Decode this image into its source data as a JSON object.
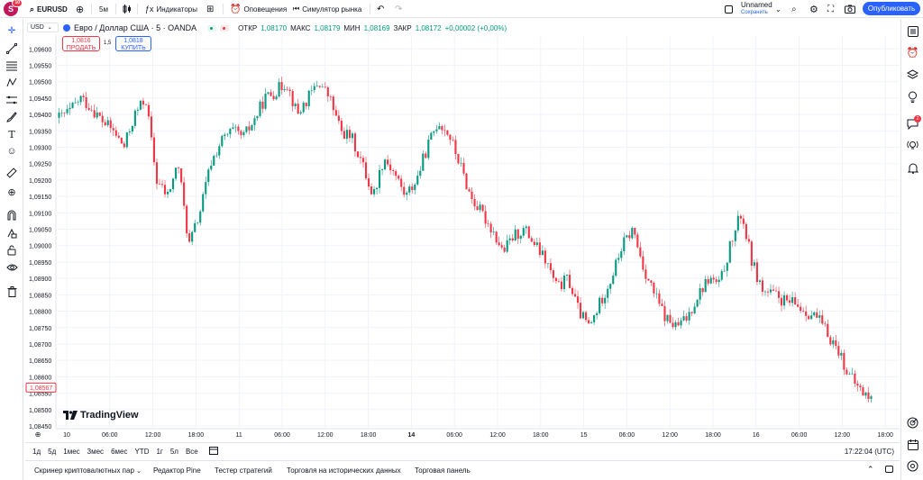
{
  "topbar": {
    "avatar_letter": "S",
    "avatar_badge": "10",
    "symbol": "EURUSD",
    "interval": "5м",
    "indicators": "Индикаторы",
    "alerts": "Оповещения",
    "replay": "Симулятор рынка",
    "layout_name": "Unnamed",
    "layout_save": "Сохранить",
    "publish": "Опубликовать"
  },
  "legend": {
    "symbol_box": "USD",
    "title": "Евро / Доллар США · 5 · OANDA",
    "open_label": "ОТКР",
    "open_value": "1,08170",
    "high_label": "МАКС",
    "high_value": "1,08179",
    "low_label": "МИН",
    "low_value": "1,08169",
    "close_label": "ЗАКР",
    "close_value": "1,08172",
    "change": "+0,00002 (+0,00%)"
  },
  "trade": {
    "sell_price": "1,0816",
    "sell_label": "ПРОДАТЬ",
    "buy_price": "1,0818",
    "buy_label": "КУПИТЬ",
    "spread": "1,5"
  },
  "price_axis": {
    "labels": [
      "1,09600",
      "1,09550",
      "1,09500",
      "1,09450",
      "1,09400",
      "1,09350",
      "1,09300",
      "1,09250",
      "1,09200",
      "1,09150",
      "1,09100",
      "1,09050",
      "1,09000",
      "1,08950",
      "1,08900",
      "1,08850",
      "1,08800",
      "1,08750",
      "1,08700",
      "1,08650",
      "1,08600",
      "1,08550",
      "1,08500",
      "1,08450"
    ],
    "current_price": "1,08567"
  },
  "time_axis": {
    "labels": [
      "10",
      "06:00",
      "12:00",
      "18:00",
      "11",
      "06:00",
      "12:00",
      "18:00",
      "14",
      "06:00",
      "12:00",
      "18:00",
      "15",
      "06:00",
      "12:00",
      "18:00",
      "16",
      "06:00",
      "12:00",
      "18:00"
    ]
  },
  "chart_data": {
    "type": "candlestick",
    "title": "Евро / Доллар США · 5 · OANDA",
    "xlabel": "",
    "ylabel": "",
    "ylim": [
      1.0845,
      1.0962
    ],
    "x_ticks": [
      "10",
      "06:00",
      "12:00",
      "18:00",
      "11",
      "06:00",
      "12:00",
      "18:00",
      "14",
      "06:00",
      "12:00",
      "18:00",
      "15",
      "06:00",
      "12:00",
      "18:00",
      "16",
      "06:00",
      "12:00",
      "18:00"
    ],
    "close_path": [
      1.0939,
      1.0941,
      1.0945,
      1.0942,
      1.0938,
      1.0935,
      1.093,
      1.094,
      1.0945,
      1.092,
      1.0915,
      1.0925,
      1.09,
      1.091,
      1.0925,
      1.0932,
      1.0935,
      1.0933,
      1.0938,
      1.0945,
      1.0947,
      1.095,
      1.094,
      1.0945,
      1.095,
      1.0945,
      1.0935,
      1.0933,
      1.0925,
      1.0915,
      1.0927,
      1.0922,
      1.0915,
      1.092,
      1.093,
      1.0938,
      1.0934,
      1.0925,
      1.0915,
      1.091,
      1.0905,
      1.0898,
      1.0903,
      1.0905,
      1.09,
      1.0895,
      1.0887,
      1.089,
      1.088,
      1.0875,
      1.0883,
      1.089,
      1.09,
      1.0905,
      1.0893,
      1.0885,
      1.0878,
      1.0875,
      1.0878,
      1.0885,
      1.089,
      1.0888,
      1.09,
      1.091,
      1.0895,
      1.0886,
      1.0885,
      1.0883,
      1.0882,
      1.088,
      1.0878,
      1.0873,
      1.0868,
      1.086,
      1.0856,
      1.0853
    ]
  },
  "range_bar": {
    "ranges": [
      "1д",
      "5д",
      "1мес",
      "3мес",
      "6мес",
      "YTD",
      "1г",
      "5л",
      "Все"
    ],
    "clock": "17:22:04 (UTC)"
  },
  "bottom_tabs": {
    "tab1": "Скринер криптовалютных пар",
    "tab2": "Редактор Pine",
    "tab3": "Тестер стратегий",
    "tab4": "Торговля на исторических данных",
    "tab5": "Торговая панель"
  },
  "watermark": "TradingView",
  "colors": {
    "up": "#089981",
    "down": "#f23645",
    "accent": "#2962ff"
  }
}
